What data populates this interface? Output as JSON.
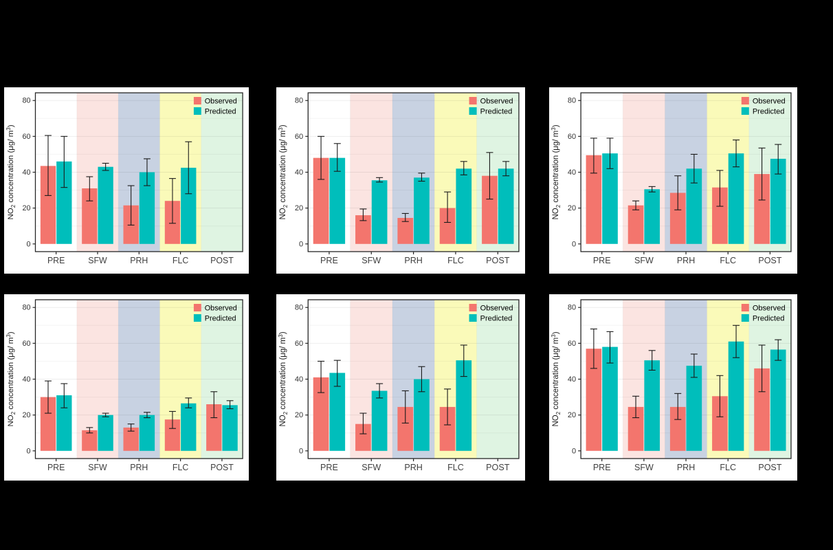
{
  "page": {
    "background": "#000000"
  },
  "legend": {
    "position": "top-right",
    "items": [
      {
        "label": "Observed",
        "color": "#F3756D"
      },
      {
        "label": "Predicted",
        "color": "#00BEBB"
      }
    ]
  },
  "chart_common": {
    "type": "bar",
    "categories": [
      "PRE",
      "SFW",
      "PRH",
      "FLC",
      "POST"
    ],
    "ylabel": "NO₂ concentration (μg/ m³)",
    "ylabel_parts": [
      [
        "NO",
        11.5,
        0
      ],
      [
        "2",
        8,
        3
      ],
      [
        " concentration (μg/ m",
        11.5,
        -3
      ],
      [
        "3",
        8,
        -4
      ],
      [
        ")",
        11.5,
        4
      ]
    ],
    "yticks": [
      0,
      20,
      40,
      60,
      80
    ],
    "ylim": [
      -4.3,
      84.3
    ],
    "grid": true,
    "band_colors": [
      "#FFFFFF",
      "#FBE4E1",
      "#C8D2E2",
      "#FAFAB9",
      "#DFF4E2"
    ],
    "series_colors": {
      "Observed": "#F3756D",
      "Predicted": "#00BEBB"
    },
    "axis_text_color": "#333333",
    "panel_border_color": "#262626",
    "errorbar_color": "#1a1a1a"
  },
  "chart_data": [
    {
      "name": "top-left",
      "series": [
        {
          "name": "Observed",
          "values": [
            43.5,
            31,
            21.5,
            24,
            null
          ],
          "err_lo": [
            27,
            24,
            10.5,
            11.5,
            null
          ],
          "err_hi": [
            60.5,
            37.5,
            32.5,
            36.5,
            null
          ]
        },
        {
          "name": "Predicted",
          "values": [
            46,
            43,
            40,
            42.5,
            null
          ],
          "err_lo": [
            31.5,
            41,
            32.5,
            28,
            null
          ],
          "err_hi": [
            60,
            45,
            47.5,
            57,
            null
          ]
        }
      ]
    },
    {
      "name": "top-middle",
      "series": [
        {
          "name": "Observed",
          "values": [
            48,
            16,
            14.5,
            20,
            38
          ],
          "err_lo": [
            36,
            13,
            12.5,
            12,
            25
          ],
          "err_hi": [
            60,
            19.5,
            17,
            29,
            51
          ]
        },
        {
          "name": "Predicted",
          "values": [
            48,
            35.5,
            37,
            42,
            42
          ],
          "err_lo": [
            40.5,
            34.5,
            35,
            38.5,
            38
          ],
          "err_hi": [
            56,
            37,
            39.5,
            46,
            46
          ]
        }
      ]
    },
    {
      "name": "top-right",
      "series": [
        {
          "name": "Observed",
          "values": [
            49.5,
            21.5,
            28.5,
            31.5,
            39
          ],
          "err_lo": [
            39.5,
            19,
            19,
            21,
            24.5
          ],
          "err_hi": [
            59,
            24,
            38,
            41,
            53.5
          ]
        },
        {
          "name": "Predicted",
          "values": [
            50.5,
            30.5,
            42,
            50.5,
            47.5
          ],
          "err_lo": [
            42,
            29,
            34,
            43,
            39
          ],
          "err_hi": [
            59,
            32,
            50,
            58,
            55.5
          ]
        }
      ]
    },
    {
      "name": "bottom-left",
      "series": [
        {
          "name": "Observed",
          "values": [
            30,
            11.5,
            13,
            17.5,
            26
          ],
          "err_lo": [
            21,
            10,
            11,
            12.5,
            18.5
          ],
          "err_hi": [
            39,
            13,
            15,
            22,
            33
          ]
        },
        {
          "name": "Predicted",
          "values": [
            31,
            20,
            20,
            26.5,
            25.5
          ],
          "err_lo": [
            24,
            19,
            18.5,
            24,
            23.5
          ],
          "err_hi": [
            37.5,
            21,
            21.5,
            29.5,
            28
          ]
        }
      ]
    },
    {
      "name": "bottom-middle",
      "series": [
        {
          "name": "Observed",
          "values": [
            41,
            15,
            24.5,
            24.5,
            null
          ],
          "err_lo": [
            32.5,
            9.5,
            15.5,
            14.5,
            null
          ],
          "err_hi": [
            50,
            21,
            33.5,
            34.5,
            null
          ]
        },
        {
          "name": "Predicted",
          "values": [
            43.5,
            33.5,
            40,
            50.5,
            null
          ],
          "err_lo": [
            36,
            29.5,
            33,
            41.5,
            null
          ],
          "err_hi": [
            50.5,
            37.5,
            47,
            59,
            null
          ]
        }
      ]
    },
    {
      "name": "bottom-right",
      "series": [
        {
          "name": "Observed",
          "values": [
            57,
            24.5,
            24.5,
            30.5,
            46
          ],
          "err_lo": [
            46,
            18.5,
            17.5,
            19,
            33
          ],
          "err_hi": [
            68,
            30.5,
            32,
            42,
            59
          ]
        },
        {
          "name": "Predicted",
          "values": [
            58,
            50.5,
            47.5,
            61,
            56.5
          ],
          "err_lo": [
            49,
            45,
            41,
            52,
            50.5
          ],
          "err_hi": [
            66.5,
            56,
            54,
            70,
            62
          ]
        }
      ]
    }
  ]
}
